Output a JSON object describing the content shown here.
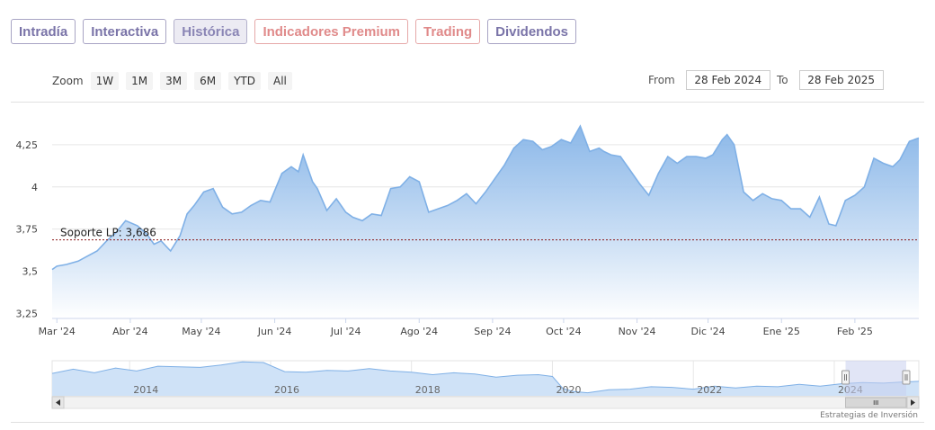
{
  "tabs": [
    {
      "label": "Intradía",
      "state": "normal"
    },
    {
      "label": "Interactiva",
      "state": "normal"
    },
    {
      "label": "Histórica",
      "state": "active"
    },
    {
      "label": "Indicadores Premium",
      "state": "premium"
    },
    {
      "label": "Trading",
      "state": "premium"
    },
    {
      "label": "Dividendos",
      "state": "normal"
    }
  ],
  "zoom": {
    "label": "Zoom",
    "buttons": [
      "1W",
      "1M",
      "3M",
      "6M",
      "YTD",
      "All"
    ]
  },
  "date_range": {
    "from_label": "From",
    "from_value": "28 Feb 2024",
    "to_label": "To",
    "to_value": "28 Feb 2025"
  },
  "colors": {
    "line": "#7fb0e6",
    "fill_top": "#7fb0e6",
    "fill_bottom": "#ffffff",
    "support_line": "#8b1a1a",
    "navigator_mask": "#c9cfee"
  },
  "chart_data": [
    {
      "type": "area",
      "title": "",
      "xlabel": "",
      "ylabel": "",
      "ylim": [
        3.22,
        4.5
      ],
      "y_ticks": [
        {
          "value": 3.25,
          "label": "3,25"
        },
        {
          "value": 3.5,
          "label": "3,5"
        },
        {
          "value": 3.75,
          "label": "3,75"
        },
        {
          "value": 4.0,
          "label": "4"
        },
        {
          "value": 4.25,
          "label": "4,25"
        }
      ],
      "x_ticks": [
        {
          "date": "2024-03-01",
          "label": "Mar '24"
        },
        {
          "date": "2024-04-01",
          "label": "Abr '24"
        },
        {
          "date": "2024-05-01",
          "label": "May '24"
        },
        {
          "date": "2024-06-01",
          "label": "Jun '24"
        },
        {
          "date": "2024-07-01",
          "label": "Jul '24"
        },
        {
          "date": "2024-08-01",
          "label": "Ago '24"
        },
        {
          "date": "2024-09-01",
          "label": "Sep '24"
        },
        {
          "date": "2024-10-01",
          "label": "Oct '24"
        },
        {
          "date": "2024-11-01",
          "label": "Nov '24"
        },
        {
          "date": "2024-12-01",
          "label": "Dic '24"
        },
        {
          "date": "2025-01-01",
          "label": "Ene '25"
        },
        {
          "date": "2025-02-01",
          "label": "Feb '25"
        }
      ],
      "x_range": [
        "2024-02-28",
        "2025-02-28"
      ],
      "annotations": [
        {
          "type": "hline",
          "value": 3.686,
          "label": "Soporte LP: 3,686"
        }
      ],
      "grid": "horizontal",
      "legend": "none",
      "series": [
        {
          "x": [
            "2024-02-28",
            "2024-03-01",
            "2024-03-05",
            "2024-03-10",
            "2024-03-14",
            "2024-03-18",
            "2024-03-22",
            "2024-03-26",
            "2024-03-30",
            "2024-04-04",
            "2024-04-08",
            "2024-04-11",
            "2024-04-14",
            "2024-04-18",
            "2024-04-22",
            "2024-04-25",
            "2024-04-28",
            "2024-05-02",
            "2024-05-06",
            "2024-05-10",
            "2024-05-14",
            "2024-05-18",
            "2024-05-22",
            "2024-05-26",
            "2024-05-30",
            "2024-06-04",
            "2024-06-08",
            "2024-06-11",
            "2024-06-13",
            "2024-06-17",
            "2024-06-19",
            "2024-06-23",
            "2024-06-27",
            "2024-07-01",
            "2024-07-04",
            "2024-07-08",
            "2024-07-12",
            "2024-07-16",
            "2024-07-20",
            "2024-07-24",
            "2024-07-28",
            "2024-08-01",
            "2024-08-05",
            "2024-08-09",
            "2024-08-13",
            "2024-08-17",
            "2024-08-21",
            "2024-08-25",
            "2024-08-29",
            "2024-09-02",
            "2024-09-06",
            "2024-09-10",
            "2024-09-14",
            "2024-09-18",
            "2024-09-22",
            "2024-09-26",
            "2024-09-30",
            "2024-10-04",
            "2024-10-08",
            "2024-10-12",
            "2024-10-16",
            "2024-10-18",
            "2024-10-21",
            "2024-10-25",
            "2024-10-29",
            "2024-11-02",
            "2024-11-06",
            "2024-11-10",
            "2024-11-14",
            "2024-11-18",
            "2024-11-22",
            "2024-11-26",
            "2024-11-30",
            "2024-12-03",
            "2024-12-07",
            "2024-12-09",
            "2024-12-12",
            "2024-12-16",
            "2024-12-20",
            "2024-12-24",
            "2024-12-28",
            "2025-01-01",
            "2025-01-05",
            "2025-01-09",
            "2025-01-13",
            "2025-01-17",
            "2025-01-21",
            "2025-01-24",
            "2025-01-28",
            "2025-02-01",
            "2025-02-05",
            "2025-02-09",
            "2025-02-13",
            "2025-02-17",
            "2025-02-20",
            "2025-02-24",
            "2025-02-28"
          ],
          "y": [
            3.51,
            3.53,
            3.54,
            3.56,
            3.59,
            3.62,
            3.68,
            3.73,
            3.8,
            3.77,
            3.72,
            3.66,
            3.68,
            3.62,
            3.71,
            3.84,
            3.89,
            3.97,
            3.99,
            3.88,
            3.84,
            3.85,
            3.89,
            3.92,
            3.91,
            4.08,
            4.12,
            4.09,
            4.19,
            4.03,
            3.99,
            3.86,
            3.93,
            3.85,
            3.82,
            3.8,
            3.84,
            3.83,
            3.99,
            4.0,
            4.06,
            4.03,
            3.85,
            3.87,
            3.89,
            3.92,
            3.96,
            3.9,
            3.97,
            4.05,
            4.13,
            4.23,
            4.28,
            4.27,
            4.22,
            4.24,
            4.28,
            4.26,
            4.36,
            4.21,
            4.23,
            4.21,
            4.19,
            4.18,
            4.1,
            4.02,
            3.95,
            4.08,
            4.18,
            4.14,
            4.18,
            4.18,
            4.17,
            4.19,
            4.28,
            4.31,
            4.25,
            3.97,
            3.92,
            3.96,
            3.93,
            3.92,
            3.87,
            3.87,
            3.82,
            3.94,
            3.78,
            3.77,
            3.92,
            3.95,
            4.0,
            4.17,
            4.14,
            4.12,
            4.16,
            4.27,
            4.29
          ]
        }
      ]
    },
    {
      "type": "area",
      "title": "",
      "x_ticks": [
        {
          "year": 2014,
          "label": "2014"
        },
        {
          "year": 2016,
          "label": "2016"
        },
        {
          "year": 2018,
          "label": "2018"
        },
        {
          "year": 2020,
          "label": "2020"
        },
        {
          "year": 2022,
          "label": "2022"
        },
        {
          "year": 2024,
          "label": "2024"
        }
      ],
      "x_range": [
        2012.9,
        2025.2
      ],
      "ylim": [
        2.0,
        4.9
      ],
      "selected_range": [
        2024.16,
        2025.16
      ],
      "legend": "none",
      "series": [
        {
          "x": [
            2012.9,
            2013.2,
            2013.5,
            2013.8,
            2014.1,
            2014.4,
            2014.7,
            2015.0,
            2015.3,
            2015.6,
            2015.9,
            2016.2,
            2016.5,
            2016.8,
            2017.1,
            2017.4,
            2017.7,
            2018.0,
            2018.3,
            2018.6,
            2018.9,
            2019.2,
            2019.5,
            2019.8,
            2020.0,
            2020.15,
            2020.3,
            2020.5,
            2020.8,
            2021.1,
            2021.4,
            2021.7,
            2022.0,
            2022.3,
            2022.6,
            2022.9,
            2023.2,
            2023.5,
            2023.8,
            2024.1,
            2024.4,
            2024.7,
            2025.0,
            2025.2
          ],
          "y": [
            3.85,
            4.2,
            3.9,
            4.3,
            4.05,
            4.45,
            4.4,
            4.35,
            4.55,
            4.8,
            4.75,
            4.0,
            3.95,
            4.1,
            4.05,
            4.25,
            4.05,
            3.95,
            3.75,
            3.9,
            3.8,
            3.55,
            3.7,
            3.75,
            3.6,
            2.6,
            2.35,
            2.25,
            2.5,
            2.55,
            2.75,
            2.7,
            2.55,
            2.8,
            2.65,
            2.8,
            2.75,
            2.95,
            2.8,
            3.0,
            3.1,
            3.05,
            3.15,
            3.2
          ]
        }
      ]
    }
  ],
  "credit": "Estrategias de Inversión"
}
